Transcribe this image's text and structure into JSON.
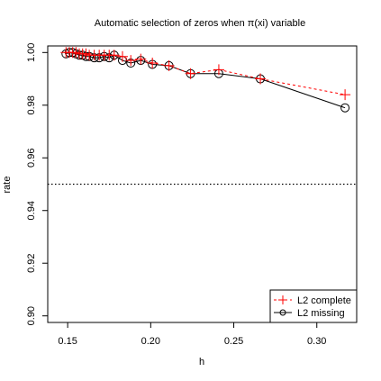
{
  "chart_data": {
    "type": "line",
    "title": "Automatic selection of zeros when π(xi) variable",
    "xlabel": "h",
    "ylabel": "rate",
    "xlim": [
      0.138,
      0.324
    ],
    "ylim": [
      0.8975,
      1.0025
    ],
    "x_ticks": [
      0.15,
      0.2,
      0.25,
      0.3
    ],
    "x_tick_labels": [
      "0.15",
      "0.20",
      "0.25",
      "0.30"
    ],
    "y_ticks": [
      0.9,
      0.92,
      0.94,
      0.96,
      0.98,
      1.0
    ],
    "y_tick_labels": [
      "0.90",
      "0.92",
      "0.94",
      "0.96",
      "0.98",
      "1.00"
    ],
    "reference_line": {
      "y": 0.95,
      "style": "dotted",
      "color": "#000000"
    },
    "grid": false,
    "legend_position": "bottom-right",
    "series": [
      {
        "name": "L2 complete",
        "color": "#ff0000",
        "line_style": "dashed",
        "marker": "plus",
        "x": [
          0.149,
          0.151,
          0.153,
          0.155,
          0.157,
          0.159,
          0.161,
          0.163,
          0.166,
          0.169,
          0.172,
          0.175,
          0.178,
          0.183,
          0.188,
          0.194,
          0.201,
          0.211,
          0.224,
          0.241,
          0.266,
          0.317
        ],
        "y": [
          1.0,
          1.0,
          1.0,
          1.0,
          0.9995,
          0.9995,
          0.9995,
          0.999,
          0.999,
          0.999,
          0.999,
          0.999,
          0.999,
          0.9985,
          0.997,
          0.9975,
          0.996,
          0.995,
          0.992,
          0.9935,
          0.99,
          0.984
        ]
      },
      {
        "name": "L2 missing",
        "color": "#000000",
        "line_style": "solid",
        "marker": "circle",
        "x": [
          0.149,
          0.151,
          0.153,
          0.155,
          0.157,
          0.159,
          0.161,
          0.163,
          0.166,
          0.169,
          0.172,
          0.175,
          0.178,
          0.183,
          0.188,
          0.194,
          0.201,
          0.211,
          0.224,
          0.241,
          0.266,
          0.317
        ],
        "y": [
          0.9995,
          1.0,
          1.0,
          0.9995,
          0.999,
          0.999,
          0.9985,
          0.9985,
          0.998,
          0.998,
          0.9985,
          0.998,
          0.999,
          0.997,
          0.996,
          0.997,
          0.9955,
          0.995,
          0.992,
          0.992,
          0.99,
          0.979
        ]
      }
    ]
  }
}
